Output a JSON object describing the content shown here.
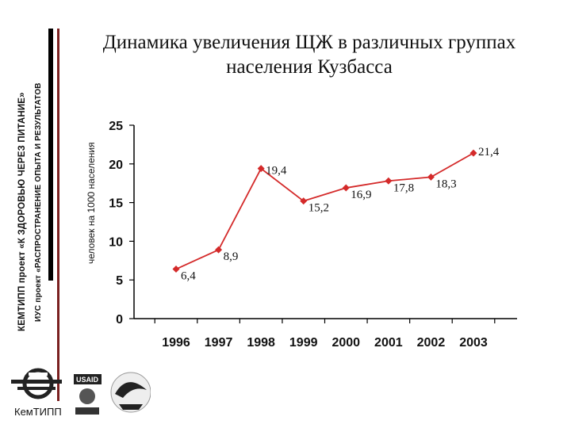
{
  "sidebar": {
    "line1": "КЕМТИПП проект «К ЗДОРОВЬЮ ЧЕРЕЗ ПИТАНИЕ»",
    "line2": "ИУС проект «РАСПРОСТРАНЕНИЕ ОПЫТА И РЕЗУЛЬТАТОВ"
  },
  "title": "Динамика увеличения ЩЖ в различных группах населения Кузбасса",
  "logos": {
    "kemtipp_caption": "КемТИПП",
    "usaid": "USAID"
  },
  "colors": {
    "series": "#d42a2a",
    "axis": "#000000"
  },
  "chart_data": {
    "type": "line",
    "title": "Динамика увеличения ЩЖ в различных группах населения Кузбасса",
    "xlabel": "",
    "ylabel": "человек на 1000 населения",
    "categories": [
      "1996",
      "1997",
      "1998",
      "1999",
      "2000",
      "2001",
      "2002",
      "2003"
    ],
    "values": [
      6.4,
      8.9,
      19.4,
      15.2,
      16.9,
      17.8,
      18.3,
      21.4
    ],
    "value_labels": [
      "6,4",
      "8,9",
      "19,4",
      "15,2",
      "16,9",
      "17,8",
      "18,3",
      "21,4"
    ],
    "yticks": [
      0,
      5,
      10,
      15,
      20,
      25
    ],
    "ylim": [
      0,
      25
    ],
    "grid": false,
    "legend": "none"
  }
}
